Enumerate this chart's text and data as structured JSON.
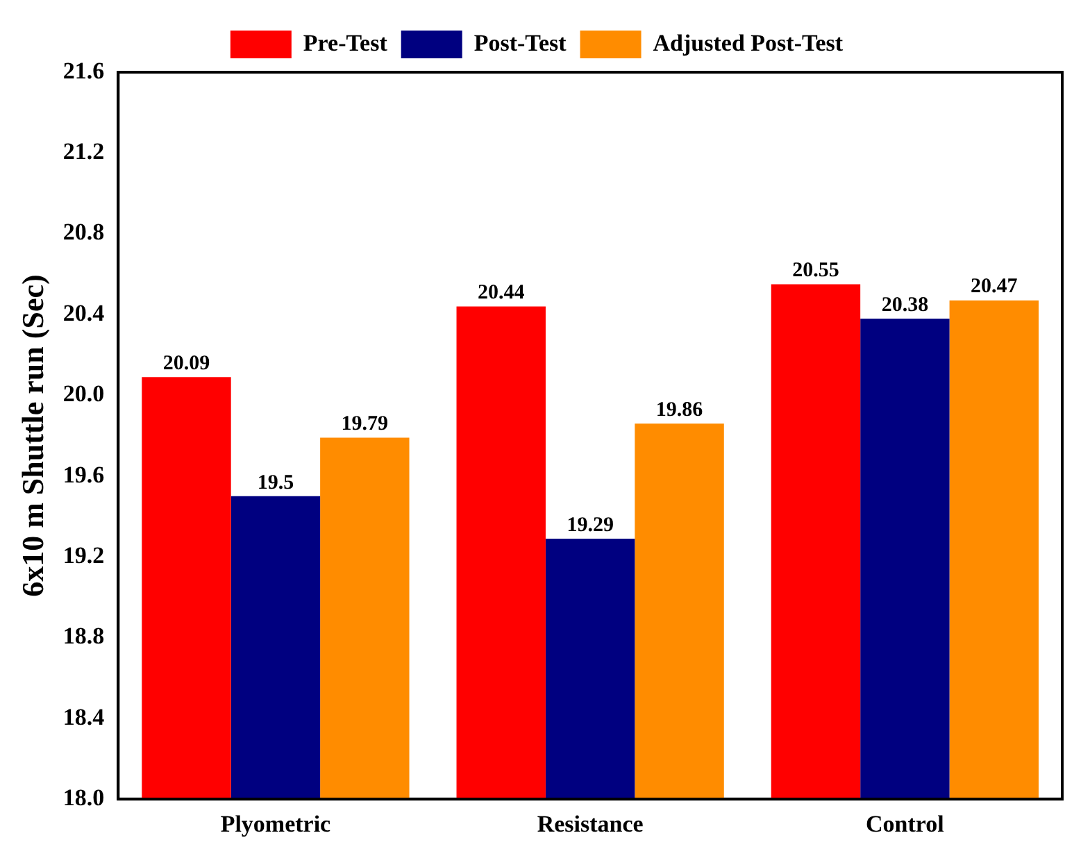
{
  "chart_data": {
    "type": "bar",
    "ylabel": "6x10 m Shuttle run (Sec)",
    "categories": [
      "Plyometric",
      "Resistance",
      "Control"
    ],
    "series": [
      {
        "name": "Pre-Test",
        "color": "#ff0000",
        "values": [
          20.09,
          20.44,
          20.55
        ]
      },
      {
        "name": "Post-Test",
        "color": "#000080",
        "values": [
          19.5,
          19.29,
          20.38
        ]
      },
      {
        "name": "Adjusted Post-Test",
        "color": "#ff8c00",
        "values": [
          19.79,
          19.86,
          20.47
        ]
      }
    ],
    "ylim": [
      18.0,
      21.6
    ],
    "yticks": [
      {
        "value": 18,
        "label": "18.0"
      },
      {
        "value": 18.4,
        "label": "18.4"
      },
      {
        "value": 18.8,
        "label": "18.8"
      },
      {
        "value": 19.2,
        "label": "19.2"
      },
      {
        "value": 19.6,
        "label": "19.6"
      },
      {
        "value": 20,
        "label": "20.0"
      },
      {
        "value": 20.4,
        "label": "20.4"
      },
      {
        "value": 20.8,
        "label": "20.8"
      },
      {
        "value": 21.2,
        "label": "21.2"
      },
      {
        "value": 21.6,
        "label": "21.6"
      }
    ],
    "grid": false,
    "legend": "top",
    "data_labels": true
  }
}
